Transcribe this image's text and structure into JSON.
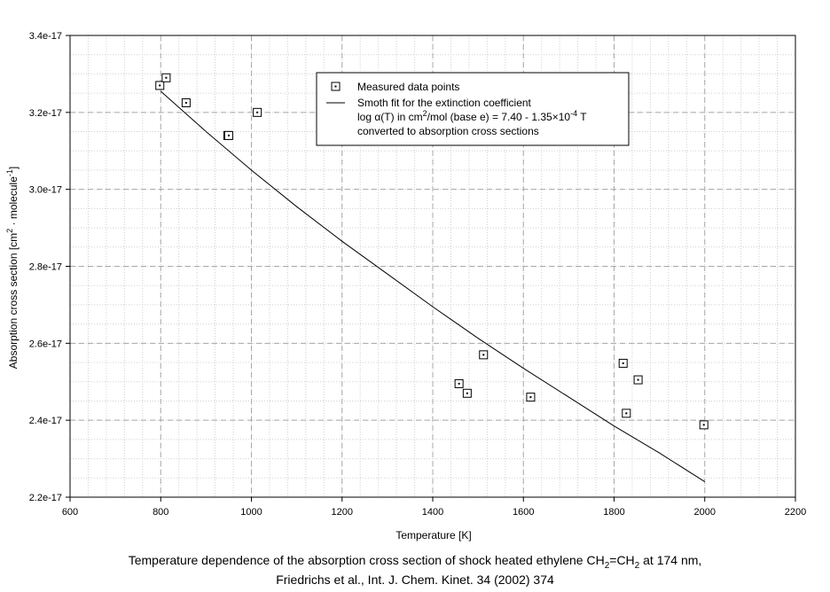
{
  "chart_data": {
    "type": "scatter",
    "xlabel": "Temperature [K]",
    "ylabel_main": "Absorption cross section [cm",
    "ylabel_sup1": "2",
    "ylabel_mid": " · molecule",
    "ylabel_sup2": "-1",
    "ylabel_end": "]",
    "xlim": [
      600,
      2200
    ],
    "ylim": [
      2.2e-17,
      3.4e-17
    ],
    "x_ticks": [
      600,
      800,
      1000,
      1200,
      1400,
      1600,
      1800,
      2000,
      2200
    ],
    "x_tick_labels": [
      "600",
      "800",
      "1000",
      "1200",
      "1400",
      "1600",
      "1800",
      "2000",
      "2200"
    ],
    "y_ticks": [
      2.2e-17,
      2.4e-17,
      2.6e-17,
      2.8e-17,
      3e-17,
      3.2e-17,
      3.4e-17
    ],
    "y_tick_labels": [
      "2.2e-17",
      "2.4e-17",
      "2.6e-17",
      "2.8e-17",
      "3.0e-17",
      "3.2e-17",
      "3.4e-17"
    ],
    "grid": true,
    "legend_position": "top-right",
    "series": [
      {
        "name": "Measured data points",
        "kind": "scatter",
        "marker": "square",
        "x": [
          798,
          812,
          856,
          948,
          950,
          1013,
          1458,
          1476,
          1512,
          1616,
          1820,
          1827,
          1853,
          1998
        ],
        "y": [
          3.27e-17,
          3.29e-17,
          3.225e-17,
          3.14e-17,
          3.14e-17,
          3.2e-17,
          2.495e-17,
          2.47e-17,
          2.57e-17,
          2.46e-17,
          2.548e-17,
          2.418e-17,
          2.505e-17,
          2.388e-17
        ]
      },
      {
        "name": "fit",
        "kind": "line",
        "x": [
          800,
          900,
          1000,
          1100,
          1200,
          1300,
          1400,
          1500,
          1600,
          1700,
          1800,
          1900,
          2000
        ],
        "y": [
          3.255e-17,
          3.15e-17,
          3.05e-17,
          2.955e-17,
          2.865e-17,
          2.78e-17,
          2.695e-17,
          2.613e-17,
          2.535e-17,
          2.46e-17,
          2.385e-17,
          2.315e-17,
          2.24e-17
        ]
      }
    ],
    "legend": {
      "marker_label": "Measured data points",
      "line_label_1": "Smoth fit for the extinction coefficient",
      "line_label_2a": "log α(T) in cm",
      "line_label_2b": "2",
      "line_label_2c": "/mol (base e) = 7.40 - 1.35×10",
      "line_label_2d": "-4",
      "line_label_2e": " T",
      "line_label_3": "converted to absorption cross sections"
    }
  },
  "caption": {
    "line1_a": "Temperature dependence of the absorption cross section of shock heated ethylene CH",
    "line1_sub1": "2",
    "line1_b": "=CH",
    "line1_sub2": "2",
    "line1_c": " at 174 nm,",
    "line2": "Friedrichs et al.,  Int. J. Chem. Kinet. 34 (2002) 374"
  }
}
